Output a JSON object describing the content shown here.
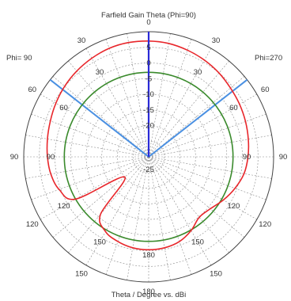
{
  "chart_data": {
    "type": "polar",
    "title": "Farfield Gain Theta (Phi=90)",
    "xlabel": "Theta / Degree vs. dBi",
    "left_label": "Phi= 90",
    "right_label": "Phi=270",
    "outer_theta_labels": [
      "0",
      "30",
      "60",
      "90",
      "120",
      "150",
      "180",
      "150",
      "120",
      "90",
      "60",
      "30"
    ],
    "inner_theta_labels": [
      "30",
      "60",
      "90",
      "120",
      "150",
      "180",
      "150",
      "120",
      "90",
      "60",
      "30"
    ],
    "radial_tick_labels": [
      "5",
      "0",
      "-5",
      "-10",
      "-15",
      "-20",
      "-25"
    ],
    "r_range_db": [
      -30,
      10
    ],
    "grid": true,
    "colors": {
      "gain": "#e8262b",
      "reference": "#3a8a2c",
      "main_lobe": "#2a2ad8",
      "beamwidth": "#4a90e2",
      "grid": "#8a8a8a"
    },
    "series": [
      {
        "key": "gain",
        "theta_deg": [
          0,
          10,
          20,
          30,
          40,
          50,
          60,
          70,
          80,
          90,
          100,
          110,
          120,
          130,
          140,
          150,
          160,
          170,
          180,
          190,
          200,
          210,
          220,
          230,
          240,
          250,
          260,
          270,
          280,
          290,
          300,
          310,
          320,
          330,
          340,
          350
        ],
        "values_db": [
          7.0,
          6.8,
          6.3,
          5.7,
          5.0,
          4.2,
          3.6,
          3.0,
          2.4,
          1.8,
          1.0,
          -0.6,
          -2.4,
          -4.2,
          -4.8,
          -2.8,
          -1.2,
          -0.5,
          -0.3,
          -0.5,
          -1.2,
          -2.4,
          -6.0,
          -20.0,
          -3.0,
          0.5,
          1.8,
          2.4,
          2.9,
          3.5,
          4.3,
          5.1,
          5.8,
          6.4,
          6.9,
          7.1
        ]
      },
      {
        "key": "reference",
        "theta_deg": [
          0,
          90,
          180,
          270
        ],
        "values_db": [
          -3.0,
          -3.0,
          -3.0,
          -3.0
        ]
      }
    ],
    "main_lobe_direction_deg": 0,
    "main_lobe_magnitude_db": 7.0,
    "beamwidth_deg": [
      -52,
      52
    ]
  }
}
